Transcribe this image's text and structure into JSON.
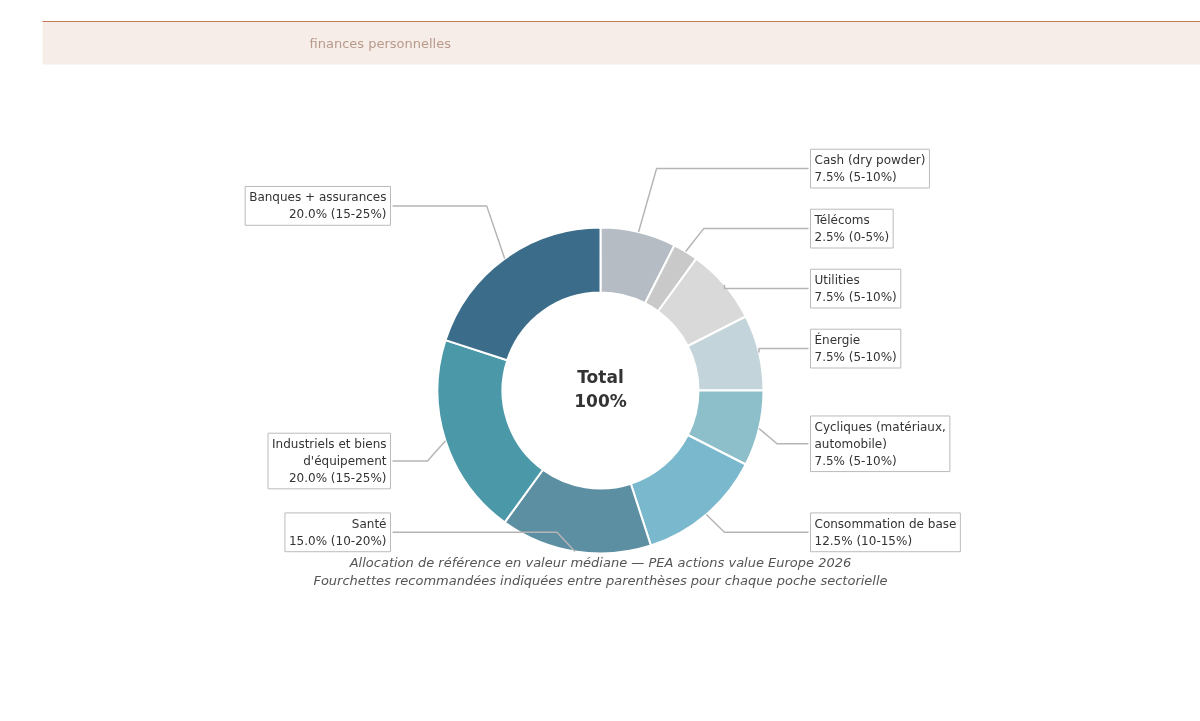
{
  "chart_data": {
    "type": "donut",
    "categories": [
      "Cash (dry powder)",
      "Télécoms",
      "Utilities",
      "Énergie",
      "Cycliques (matériaux,\nautomobile)",
      "Consommation de base",
      "Santé",
      "Industriels et biens\nd'équipement",
      "Banques + assurances"
    ],
    "values": [
      7.5,
      2.5,
      7.5,
      7.5,
      7.5,
      12.5,
      15.0,
      20.0,
      20.0
    ],
    "value_labels": [
      "7.5% (5-10%)",
      "2.5% (0-5%)",
      "7.5% (5-10%)",
      "7.5% (5-10%)",
      "7.5% (5-10%)",
      "12.5% (10-15%)",
      "15.0% (10-20%)",
      "20.0% (15-25%)",
      "20.0% (15-25%)"
    ],
    "colors": [
      "#b6bcc4",
      "#c9c9c9",
      "#d9d9d9",
      "#c4d4db",
      "#8dbfca",
      "#7ab8cd",
      "#5c8fa1",
      "#4a98a8",
      "#3b6d8a"
    ],
    "legend": false,
    "annotations": [
      "finances personnelles",
      "Total\n100%",
      "Allocation de référence en valeur médiane — PEA actions value Europe 2026",
      "Fourchettes recommandées indiquées entre parenthèses pour chaque poche sectorielle"
    ]
  }
}
